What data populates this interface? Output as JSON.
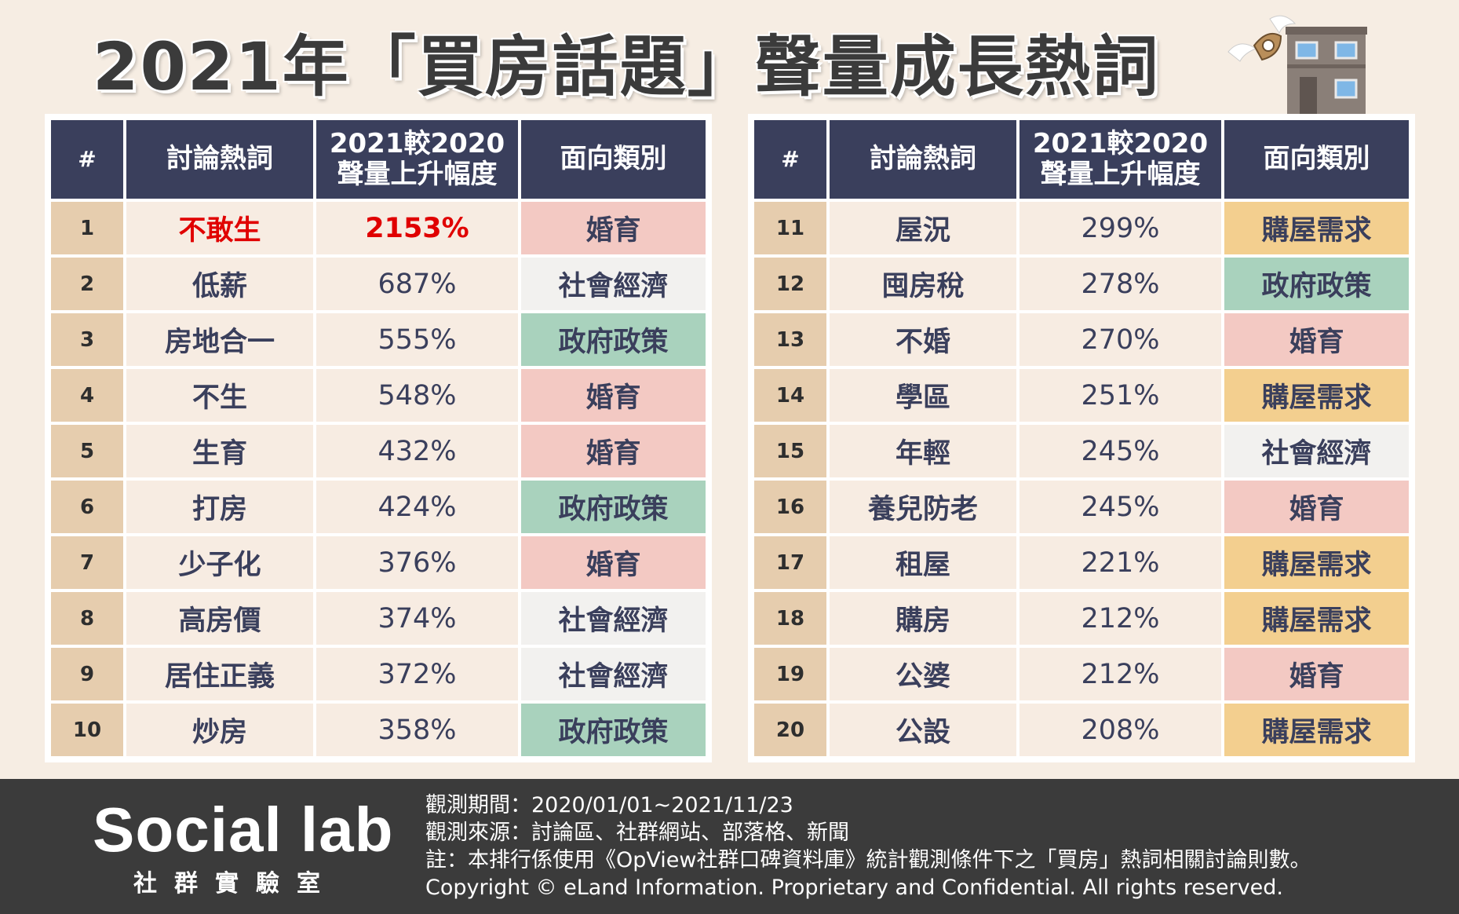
{
  "title": "2021年「買房話題」聲量成長熱詞",
  "headers": {
    "rank": "#",
    "word": "討論熱詞",
    "pct_line1": "2021較2020",
    "pct_line2": "聲量上升幅度",
    "category": "面向類別"
  },
  "category_colors": {
    "婚育": "#f3c9c3",
    "社會經濟": "#f2f1ef",
    "政府政策": "#a9d2bd",
    "購屋需求": "#f3cf8f"
  },
  "rows": [
    {
      "rank": "1",
      "word": "不敢生",
      "pct": "2153%",
      "category": "婚育"
    },
    {
      "rank": "2",
      "word": "低薪",
      "pct": "687%",
      "category": "社會經濟"
    },
    {
      "rank": "3",
      "word": "房地合一",
      "pct": "555%",
      "category": "政府政策"
    },
    {
      "rank": "4",
      "word": "不生",
      "pct": "548%",
      "category": "婚育"
    },
    {
      "rank": "5",
      "word": "生育",
      "pct": "432%",
      "category": "婚育"
    },
    {
      "rank": "6",
      "word": "打房",
      "pct": "424%",
      "category": "政府政策"
    },
    {
      "rank": "7",
      "word": "少子化",
      "pct": "376%",
      "category": "婚育"
    },
    {
      "rank": "8",
      "word": "高房價",
      "pct": "374%",
      "category": "社會經濟"
    },
    {
      "rank": "9",
      "word": "居住正義",
      "pct": "372%",
      "category": "社會經濟"
    },
    {
      "rank": "10",
      "word": "炒房",
      "pct": "358%",
      "category": "政府政策"
    },
    {
      "rank": "11",
      "word": "屋況",
      "pct": "299%",
      "category": "購屋需求"
    },
    {
      "rank": "12",
      "word": "囤房稅",
      "pct": "278%",
      "category": "政府政策"
    },
    {
      "rank": "13",
      "word": "不婚",
      "pct": "270%",
      "category": "婚育"
    },
    {
      "rank": "14",
      "word": "學區",
      "pct": "251%",
      "category": "購屋需求"
    },
    {
      "rank": "15",
      "word": "年輕",
      "pct": "245%",
      "category": "社會經濟"
    },
    {
      "rank": "16",
      "word": "養兒防老",
      "pct": "245%",
      "category": "婚育"
    },
    {
      "rank": "17",
      "word": "租屋",
      "pct": "221%",
      "category": "購屋需求"
    },
    {
      "rank": "18",
      "word": "購房",
      "pct": "212%",
      "category": "購屋需求"
    },
    {
      "rank": "19",
      "word": "公婆",
      "pct": "212%",
      "category": "婚育"
    },
    {
      "rank": "20",
      "word": "公設",
      "pct": "208%",
      "category": "購屋需求"
    }
  ],
  "footer": {
    "logo_text": "Social lab",
    "logo_sub": "社群實驗室",
    "period": "觀測期間：2020/01/01~2021/11/23",
    "source": "觀測來源：討論區、社群網站、部落格、新聞",
    "note": "註：本排行係使用《OpView社群口碑資料庫》統計觀測條件下之「買房」熱詞相關討論則數。",
    "copyright": "Copyright © eLand Information. Proprietary and Confidential. All rights reserved."
  },
  "icons": [
    "flying-house-money-icon",
    "apartment-building-icon",
    "speech-bubble-icon",
    "flask-icon"
  ]
}
